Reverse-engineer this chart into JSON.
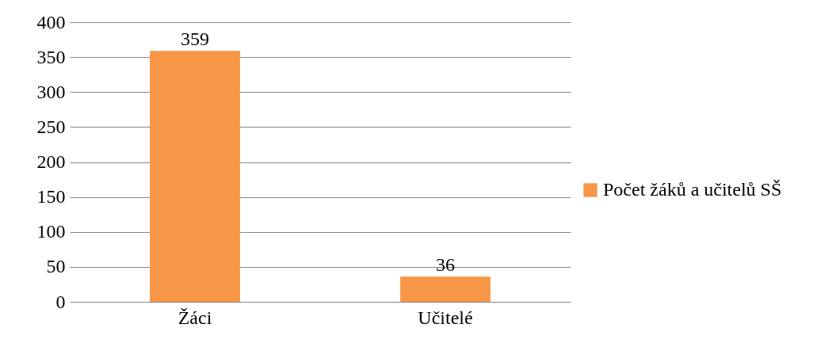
{
  "chart_data": {
    "type": "bar",
    "categories": [
      "Žáci",
      "Učitelé"
    ],
    "series": [
      {
        "name": "Počet žáků a učitelů SŠ",
        "color": "#f79646",
        "values": [
          359,
          36
        ]
      }
    ],
    "ylim": [
      0,
      400
    ],
    "yticks": [
      0,
      50,
      100,
      150,
      200,
      250,
      300,
      350,
      400
    ],
    "grid": "y",
    "legend": "right",
    "data_labels": true
  }
}
